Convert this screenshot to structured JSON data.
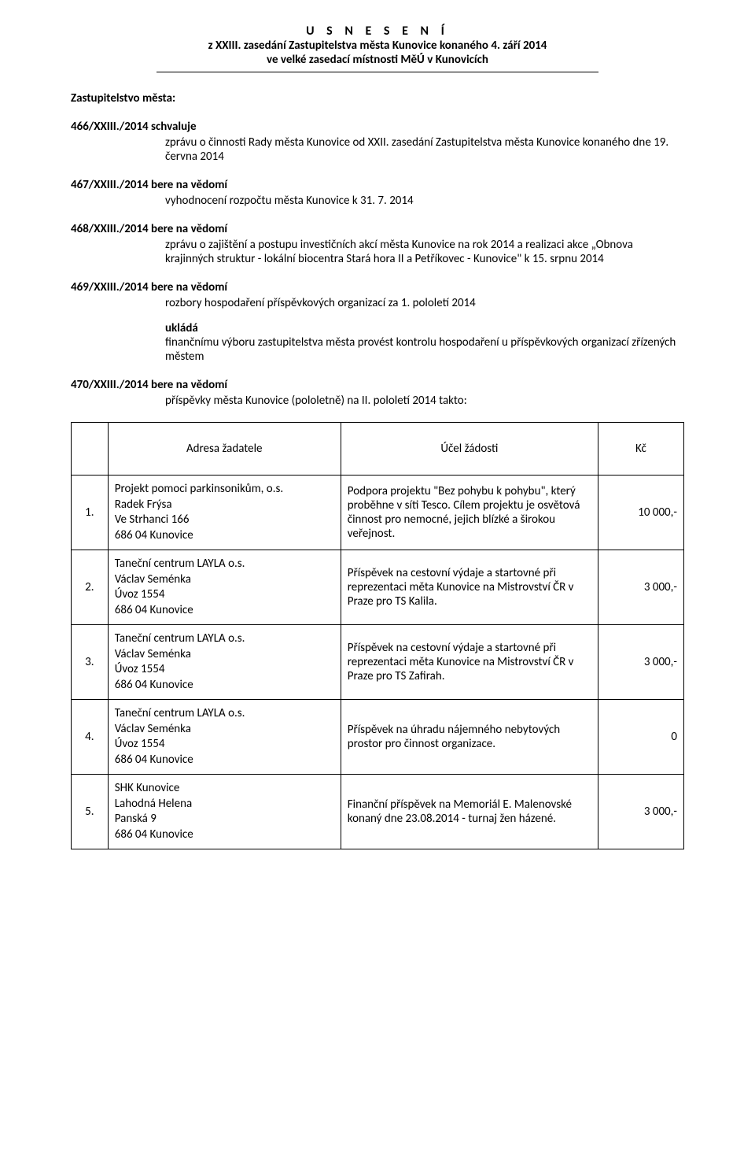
{
  "header": {
    "line1": "U S N E S E N Í",
    "line2": "z XXIII. zasedání Zastupitelstva města Kunovice konaného 4. září 2014",
    "line3": "ve velké zasedací místnosti MěÚ v Kunovicích"
  },
  "intro": "Zastupitelstvo města:",
  "resolutions": [
    {
      "id": "466/XXIII./2014",
      "verb": "schvaluje",
      "text": "zprávu o činnosti Rady města Kunovice od XXII. zasedání Zastupitelstva města Kunovice konaného dne 19. června 2014"
    },
    {
      "id": "467/XXIII./2014",
      "verb": "bere na vědomí",
      "text": "vyhodnocení rozpočtu města Kunovice k 31. 7. 2014"
    },
    {
      "id": "468/XXIII./2014",
      "verb": "bere na vědomí",
      "text": "zprávu o zajištění a postupu investičních akcí města Kunovice na rok 2014 a realizaci akce „Obnova krajinných struktur  - lokální biocentra Stará hora II a Petříkovec - Kunovice\"  k 15. srpnu 2014"
    },
    {
      "id": "469/XXIII./2014",
      "verb": "bere na vědomí",
      "text": "rozbory hospodaření příspěvkových organizací za 1. pololetí 2014",
      "sub": {
        "verb": "ukládá",
        "text": "finančnímu výboru zastupitelstva města provést kontrolu hospodaření u příspěvkových organizací zřízených městem"
      }
    },
    {
      "id": "470/XXIII./2014",
      "verb": "bere na vědomí",
      "text": "příspěvky města Kunovice (pololetně) na II. pololetí 2014 takto:"
    }
  ],
  "table": {
    "headers": {
      "blank": "",
      "applicant": "Adresa žadatele",
      "purpose": "Účel žádosti",
      "amount": "Kč"
    },
    "rows": [
      {
        "num": "1.",
        "applicant": "Projekt pomoci parkinsonikům, o.s.\nRadek Frýsa\nVe Strhanci 166\n686 04  Kunovice",
        "purpose": "Podpora projektu \"Bez pohybu k pohybu\", který proběhne v síti Tesco. Cílem projektu je osvětová činnost pro nemocné, jejich blízké a širokou veřejnost.",
        "amount": "10 000,-"
      },
      {
        "num": "2.",
        "applicant": "Taneční centrum LAYLA o.s.\nVáclav Seménka\nÚvoz 1554\n686 04  Kunovice",
        "purpose": "Příspěvek na cestovní výdaje a startovné při reprezentaci měta Kunovice na Mistrovství ČR v Praze pro TS Kalila.",
        "amount": "3 000,-"
      },
      {
        "num": "3.",
        "applicant": "Taneční centrum LAYLA o.s.\nVáclav Seménka\nÚvoz 1554\n686 04  Kunovice",
        "purpose": "Příspěvek na cestovní výdaje a startovné při reprezentaci měta Kunovice na Mistrovství ČR v Praze pro TS Zafirah.",
        "amount": "3 000,-"
      },
      {
        "num": "4.",
        "applicant": "Taneční centrum LAYLA o.s.\nVáclav Seménka\nÚvoz 1554\n686 04  Kunovice",
        "purpose": "Příspěvek na úhradu nájemného nebytových prostor pro činnost organizace.",
        "amount": "0"
      },
      {
        "num": "5.",
        "applicant": "SHK Kunovice\nLahodná Helena\nPanská 9\n686 04  Kunovice",
        "purpose": "Finanční příspěvek na Memoriál E. Malenovské konaný dne 23.08.2014 - turnaj žen házené.",
        "amount": "3 000,-"
      }
    ]
  }
}
